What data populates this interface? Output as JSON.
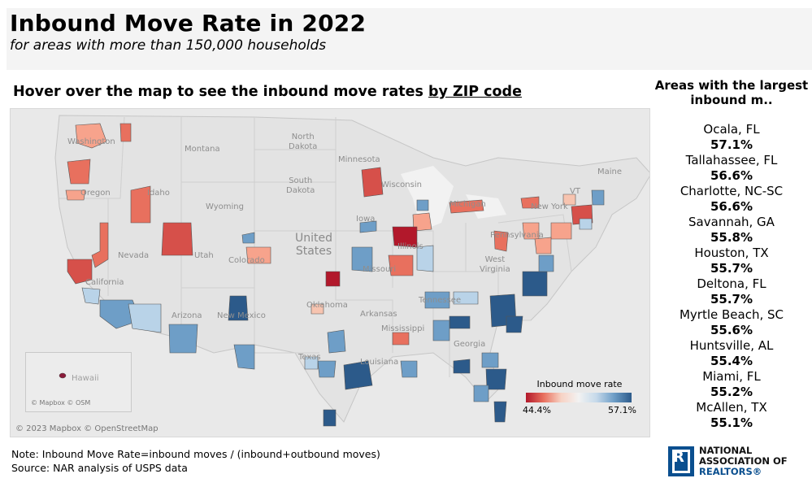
{
  "header": {
    "title": "Inbound Move Rate in 2022",
    "subtitle": "for areas with more than 150,000 households"
  },
  "hover_hint": {
    "prefix": "Hover over the map to see the inbound move rates",
    "link": "by ZIP code"
  },
  "map": {
    "state_labels": {
      "washington": "Washington",
      "oregon": "Oregon",
      "montana": "Montana",
      "idaho": "Idaho",
      "wyoming": "Wyoming",
      "north_dakota": "North\nDakota",
      "south_dakota": "South\nDakota",
      "minnesota": "Minnesota",
      "wisconsin": "Wisconsin",
      "iowa": "Iowa",
      "illinois": "Illinois",
      "nevada": "Nevada",
      "utah": "Utah",
      "colorado": "Colorado",
      "california": "California",
      "arizona": "Arizona",
      "new_mexico": "New Mexico",
      "oklahoma": "Oklahoma",
      "texas": "Texas",
      "missouri": "Missouri",
      "arkansas": "Arkansas",
      "mississippi": "Mississippi",
      "louisiana": "Louisiana",
      "tennessee": "Tennessee",
      "georgia": "Georgia",
      "west_virginia": "West\nVirginia",
      "pennsylvania": "Pennsylvania",
      "new_york": "New York",
      "vermont": "VT",
      "maine": "Maine",
      "michigan": "Michigan"
    },
    "country_label": "United\nStates",
    "inset_label": "Hawaii",
    "inset_attribution": "© Mapbox © OSM",
    "attribution": "© 2023 Mapbox © OpenStreetMap",
    "colors": {
      "low": "#b2182b",
      "mid_low": "#e8705e",
      "light_red": "#f7c4b0",
      "neutral": "#f2f2f2",
      "light_blue": "#b9d3e8",
      "mid_blue": "#6e9ec7",
      "high": "#2c5a8a"
    }
  },
  "legend": {
    "title": "Inbound move rate",
    "min": "44.4%",
    "max": "57.1%"
  },
  "side_panel": {
    "title": "Areas with the largest inbound m..",
    "items": [
      {
        "area": "Ocala, FL",
        "rate": "57.1%"
      },
      {
        "area": "Tallahassee, FL",
        "rate": "56.6%"
      },
      {
        "area": "Charlotte, NC-SC",
        "rate": "56.6%"
      },
      {
        "area": "Savannah, GA",
        "rate": "55.8%"
      },
      {
        "area": "Houston, TX",
        "rate": "55.7%"
      },
      {
        "area": "Deltona, FL",
        "rate": "55.7%"
      },
      {
        "area": "Myrtle Beach, SC",
        "rate": "55.6%"
      },
      {
        "area": "Huntsville, AL",
        "rate": "55.4%"
      },
      {
        "area": "Miami, FL",
        "rate": "55.2%"
      },
      {
        "area": "McAllen, TX",
        "rate": "55.1%"
      }
    ]
  },
  "footer": {
    "note": "Note: Inbound Move Rate=inbound moves / (inbound+outbound moves)",
    "source": "Source: NAR analysis of USPS data"
  },
  "logo": {
    "line1": "NATIONAL",
    "line2": "ASSOCIATION OF",
    "line3": "REALTORS®"
  }
}
